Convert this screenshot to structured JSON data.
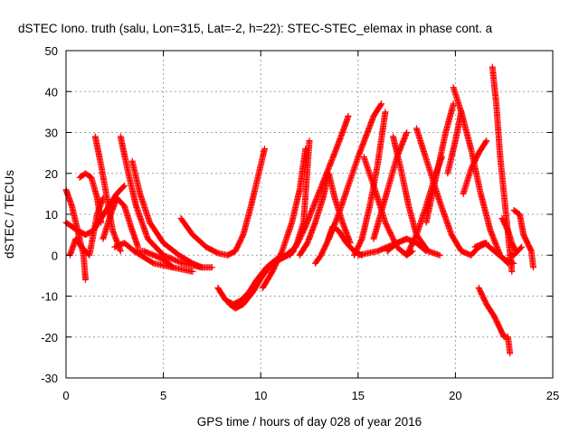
{
  "chart_data": {
    "type": "scatter",
    "title": "dSTEC Iono. truth (salu, Lon=315, Lat=-2, h=22): STEC-STEC_elemax in phase cont. a",
    "xlabel": "GPS time / hours of day 028 of year 2016",
    "ylabel": "dSTEC  / TECUs",
    "xlim": [
      0,
      25
    ],
    "ylim": [
      -30,
      50
    ],
    "xticks": [
      "0",
      "5",
      "10",
      "15",
      "20",
      "25"
    ],
    "yticks": [
      "-30",
      "-20",
      "-10",
      "0",
      "10",
      "20",
      "30",
      "40",
      "50"
    ],
    "grid": true,
    "marker": "+",
    "series_color": "#ff0000",
    "series": [
      {
        "x": [
          0.0,
          0.3,
          0.6,
          0.9,
          1.0
        ],
        "y": [
          16,
          12,
          6,
          0,
          -6
        ]
      },
      {
        "x": [
          0.0,
          0.3,
          0.6,
          1.0,
          1.4,
          1.8,
          2.2,
          2.6,
          3.0
        ],
        "y": [
          8,
          7,
          6,
          5,
          6,
          9,
          12,
          15,
          17
        ]
      },
      {
        "x": [
          0.2,
          0.5,
          0.8,
          1.2,
          1.6,
          1.9
        ],
        "y": [
          0,
          4,
          2,
          0,
          10,
          14
        ]
      },
      {
        "x": [
          0.7,
          1.0,
          1.3,
          1.6,
          1.8
        ],
        "y": [
          19,
          20,
          19,
          14,
          8
        ]
      },
      {
        "x": [
          1.5,
          1.8,
          2.1,
          2.4,
          2.8
        ],
        "y": [
          29,
          22,
          14,
          6,
          1
        ]
      },
      {
        "x": [
          1.9,
          2.3,
          2.6,
          3.0,
          3.4,
          3.7
        ],
        "y": [
          4,
          10,
          14,
          12,
          6,
          2
        ]
      },
      {
        "x": [
          2.8,
          3.2,
          3.6,
          4.2,
          5.0,
          6.0,
          7.0,
          7.5
        ],
        "y": [
          29,
          20,
          12,
          4,
          0,
          -2,
          -3,
          -3
        ]
      },
      {
        "x": [
          2.5,
          3.0,
          3.5,
          4.5,
          5.5,
          6.5
        ],
        "y": [
          2,
          3,
          1,
          -2,
          -3,
          -4
        ]
      },
      {
        "x": [
          3.4,
          3.8,
          4.3,
          5.0,
          5.8,
          6.5,
          7.0
        ],
        "y": [
          23,
          15,
          8,
          3,
          0,
          -2,
          -3
        ]
      },
      {
        "x": [
          3.5,
          4.0,
          4.5,
          5.0,
          5.5
        ],
        "y": [
          1,
          1,
          0,
          -1,
          -3
        ]
      },
      {
        "x": [
          5.9,
          6.5,
          7.2,
          7.8,
          8.3,
          8.7,
          9.1,
          9.5,
          9.9,
          10.2
        ],
        "y": [
          9,
          5,
          2,
          0.5,
          0,
          1,
          5,
          12,
          20,
          26
        ]
      },
      {
        "x": [
          7.8,
          8.2,
          8.6,
          9.0,
          9.4,
          9.8,
          10.3,
          10.8,
          11.3,
          11.8,
          12.2,
          12.5
        ],
        "y": [
          -8,
          -11,
          -12,
          -11,
          -9,
          -6,
          -3,
          -1,
          0,
          2,
          8,
          28
        ]
      },
      {
        "x": [
          8.4,
          8.7,
          9.1,
          9.6,
          10.1,
          10.6,
          11.0,
          11.4,
          11.7
        ],
        "y": [
          -12,
          -13,
          -12,
          -9,
          -5,
          -2,
          -1,
          0,
          1
        ]
      },
      {
        "x": [
          10.1,
          10.6,
          11.1,
          11.6,
          12.0,
          12.3
        ],
        "y": [
          -8,
          -4,
          1,
          8,
          16,
          26
        ]
      },
      {
        "x": [
          11.5,
          11.9,
          12.3,
          12.8,
          13.3,
          13.8,
          14.2,
          14.5
        ],
        "y": [
          0,
          3,
          7,
          13,
          19,
          25,
          30,
          34
        ]
      },
      {
        "x": [
          12.0,
          12.4,
          12.8,
          13.2,
          13.5,
          13.8,
          14.2,
          14.6
        ],
        "y": [
          0,
          3,
          8,
          14,
          20,
          14,
          8,
          3
        ]
      },
      {
        "x": [
          12.8,
          13.1,
          13.4,
          13.7,
          14.0,
          14.4,
          14.8,
          15.2
        ],
        "y": [
          -2,
          0,
          3,
          7,
          6,
          3,
          1,
          0
        ]
      },
      {
        "x": [
          13.5,
          14.0,
          14.5,
          15.0,
          15.4,
          15.8,
          16.2
        ],
        "y": [
          4,
          10,
          17,
          24,
          29,
          34,
          37
        ]
      },
      {
        "x": [
          14.8,
          15.2,
          15.6,
          16.0,
          16.4
        ],
        "y": [
          0,
          4,
          12,
          22,
          35
        ]
      },
      {
        "x": [
          15.3,
          15.8,
          16.4,
          17.0,
          17.5,
          17.8
        ],
        "y": [
          24,
          17,
          8,
          2,
          0,
          1
        ]
      },
      {
        "x": [
          15.8,
          16.4,
          17.0,
          17.5
        ],
        "y": [
          4,
          14,
          24,
          30
        ]
      },
      {
        "x": [
          15.0,
          15.5,
          16.0,
          16.5,
          17.0,
          17.5
        ],
        "y": [
          0,
          0.5,
          1,
          2,
          3,
          4
        ]
      },
      {
        "x": [
          16.8,
          17.2,
          17.6,
          18.0,
          18.6,
          19.2
        ],
        "y": [
          29,
          21,
          12,
          5,
          1,
          0
        ]
      },
      {
        "x": [
          16.5,
          17.0,
          17.5,
          18.0,
          18.5
        ],
        "y": [
          1,
          3,
          4,
          3,
          1
        ]
      },
      {
        "x": [
          17.5,
          18.0,
          18.5,
          19.0,
          19.3
        ],
        "y": [
          0,
          5,
          12,
          20,
          24
        ]
      },
      {
        "x": [
          18.0,
          18.6,
          19.2,
          19.8,
          20.3,
          20.8,
          21.2,
          21.6
        ],
        "y": [
          31,
          22,
          13,
          5,
          1,
          0,
          2,
          3
        ]
      },
      {
        "x": [
          18.5,
          19.0,
          19.5,
          19.9
        ],
        "y": [
          8,
          19,
          30,
          37
        ]
      },
      {
        "x": [
          19.6,
          20.0,
          20.3
        ],
        "y": [
          20,
          28,
          35
        ]
      },
      {
        "x": [
          19.9,
          20.3,
          20.8,
          21.3,
          21.8,
          22.3,
          22.7
        ],
        "y": [
          41,
          35,
          26,
          15,
          6,
          0,
          -2
        ]
      },
      {
        "x": [
          20.4,
          20.8,
          21.2,
          21.6
        ],
        "y": [
          15,
          21,
          25,
          28
        ]
      },
      {
        "x": [
          21.0,
          21.5,
          22.0,
          22.5,
          23.0
        ],
        "y": [
          2,
          3,
          1,
          -1,
          -2
        ]
      },
      {
        "x": [
          21.2,
          21.6,
          22.0,
          22.3,
          22.5,
          22.7,
          22.8
        ],
        "y": [
          -8,
          -12,
          -15,
          -18,
          -20,
          -20,
          -24
        ]
      },
      {
        "x": [
          21.9,
          22.1,
          22.3,
          22.6,
          22.9
        ],
        "y": [
          46,
          37,
          24,
          10,
          -4
        ]
      },
      {
        "x": [
          22.4,
          22.7,
          22.9,
          23.1
        ],
        "y": [
          9,
          6,
          3,
          1
        ]
      },
      {
        "x": [
          23.0,
          23.3,
          23.5,
          23.7,
          23.9,
          24.0
        ],
        "y": [
          11,
          10,
          5,
          3,
          1,
          -3
        ]
      },
      {
        "x": [
          22.8,
          23.0,
          23.2,
          23.4
        ],
        "y": [
          0,
          0,
          1,
          2
        ]
      }
    ]
  }
}
